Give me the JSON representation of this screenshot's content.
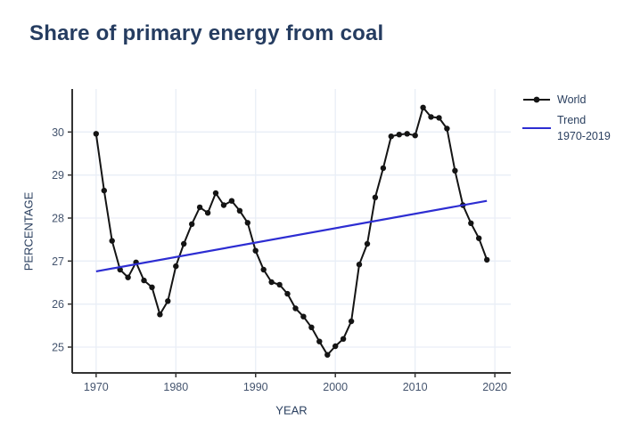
{
  "title": "Share of primary energy from coal",
  "chart_data": {
    "type": "line",
    "title": "Share of primary energy from coal",
    "xlabel": "YEAR",
    "ylabel": "PERCENTAGE",
    "xlim": [
      1967,
      2022
    ],
    "ylim": [
      24.4,
      31.0
    ],
    "xticks": [
      1970,
      1980,
      1990,
      2000,
      2010,
      2020
    ],
    "yticks": [
      25,
      26,
      27,
      28,
      29,
      30
    ],
    "grid": true,
    "legend_position": "outside-right-top",
    "series": [
      {
        "name": "World",
        "mode": "line+markers",
        "color": "#141414",
        "x": [
          1970,
          1971,
          1972,
          1973,
          1974,
          1975,
          1976,
          1977,
          1978,
          1979,
          1980,
          1981,
          1982,
          1983,
          1984,
          1985,
          1986,
          1987,
          1988,
          1989,
          1990,
          1991,
          1992,
          1993,
          1994,
          1995,
          1996,
          1997,
          1998,
          1999,
          2000,
          2001,
          2002,
          2003,
          2004,
          2005,
          2006,
          2007,
          2008,
          2009,
          2010,
          2011,
          2012,
          2013,
          2014,
          2015,
          2016,
          2017,
          2018,
          2019
        ],
        "y": [
          29.96,
          28.64,
          27.47,
          26.8,
          26.62,
          26.97,
          26.55,
          26.39,
          25.76,
          26.07,
          26.88,
          27.4,
          27.86,
          28.25,
          28.12,
          28.58,
          28.3,
          28.4,
          28.17,
          27.89,
          27.24,
          26.8,
          26.51,
          26.45,
          26.24,
          25.9,
          25.71,
          25.46,
          25.13,
          24.82,
          25.02,
          25.19,
          25.6,
          26.92,
          27.4,
          28.48,
          29.16,
          29.9,
          29.94,
          29.96,
          29.92,
          30.57,
          30.35,
          30.33,
          30.08,
          29.1,
          28.3,
          27.88,
          27.53,
          27.03
        ]
      },
      {
        "name": "Trend 1970-2019",
        "mode": "line",
        "color": "#2d2dd2",
        "x": [
          1970,
          2019
        ],
        "y": [
          26.76,
          28.4
        ]
      }
    ],
    "legend": [
      {
        "label": "World",
        "swatch": "line-marker",
        "color": "#141414"
      },
      {
        "label": "Trend",
        "label2": "1970-2019",
        "swatch": "line",
        "color": "#2d2dd2"
      }
    ]
  },
  "colors": {
    "title": "#253c60",
    "axis_line": "#333333",
    "grid": "#e9eef6",
    "tick_label": "#44546e",
    "axis_title": "#2a3f5f",
    "world_line": "#141414",
    "trend_line": "#2d2dd2",
    "background": "#ffffff"
  }
}
